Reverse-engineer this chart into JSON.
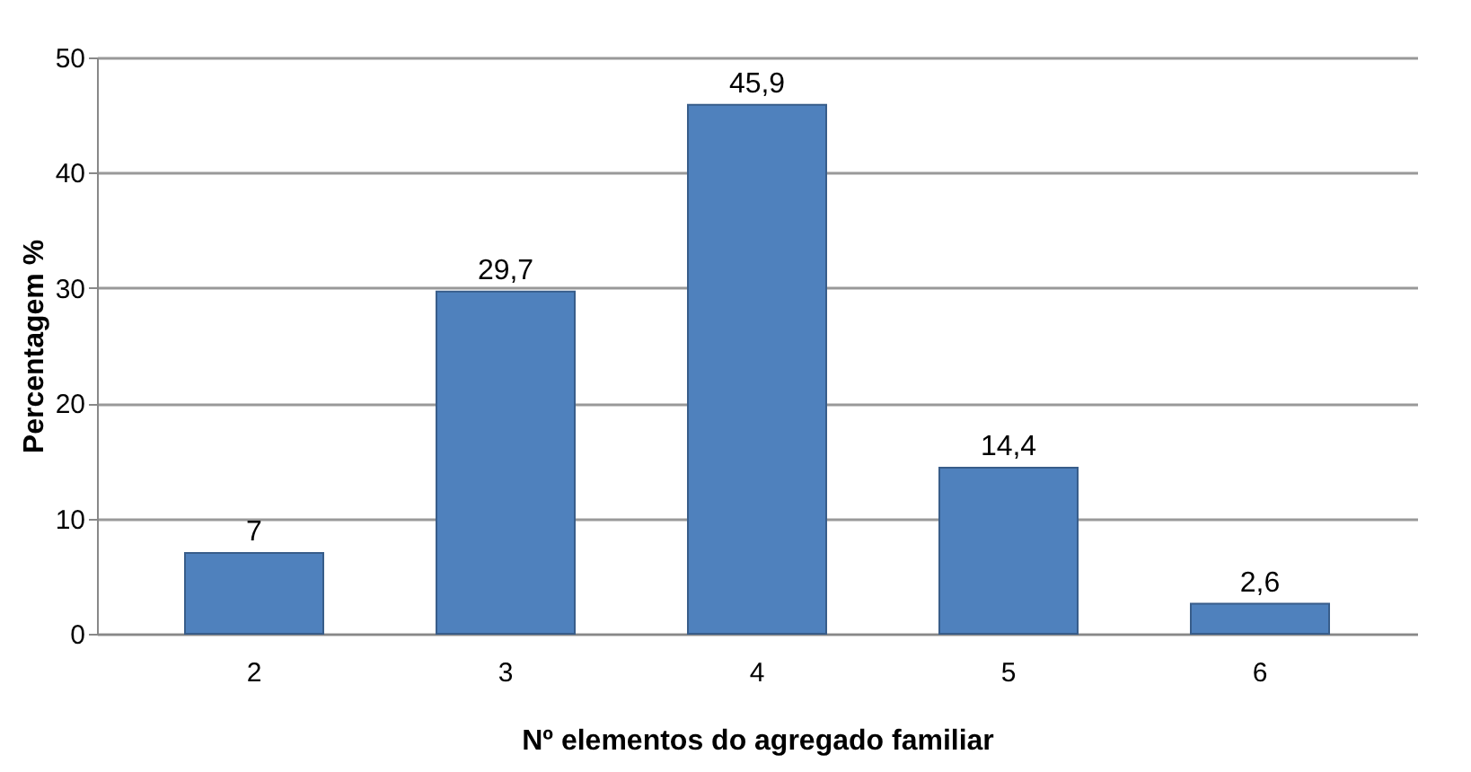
{
  "chart_data": {
    "type": "bar",
    "categories": [
      "2",
      "3",
      "4",
      "5",
      "6"
    ],
    "values": [
      7,
      29.7,
      45.9,
      14.4,
      2.6
    ],
    "value_labels": [
      "7",
      "29,7",
      "45,9",
      "14,4",
      "2,6"
    ],
    "color": "#4f81bd",
    "xlabel": "Nº elementos do agregado familiar",
    "ylabel": "Percentagem %",
    "ylim": [
      0,
      50
    ],
    "yticks": [
      0,
      10,
      20,
      30,
      40,
      50
    ],
    "grid": "y"
  }
}
